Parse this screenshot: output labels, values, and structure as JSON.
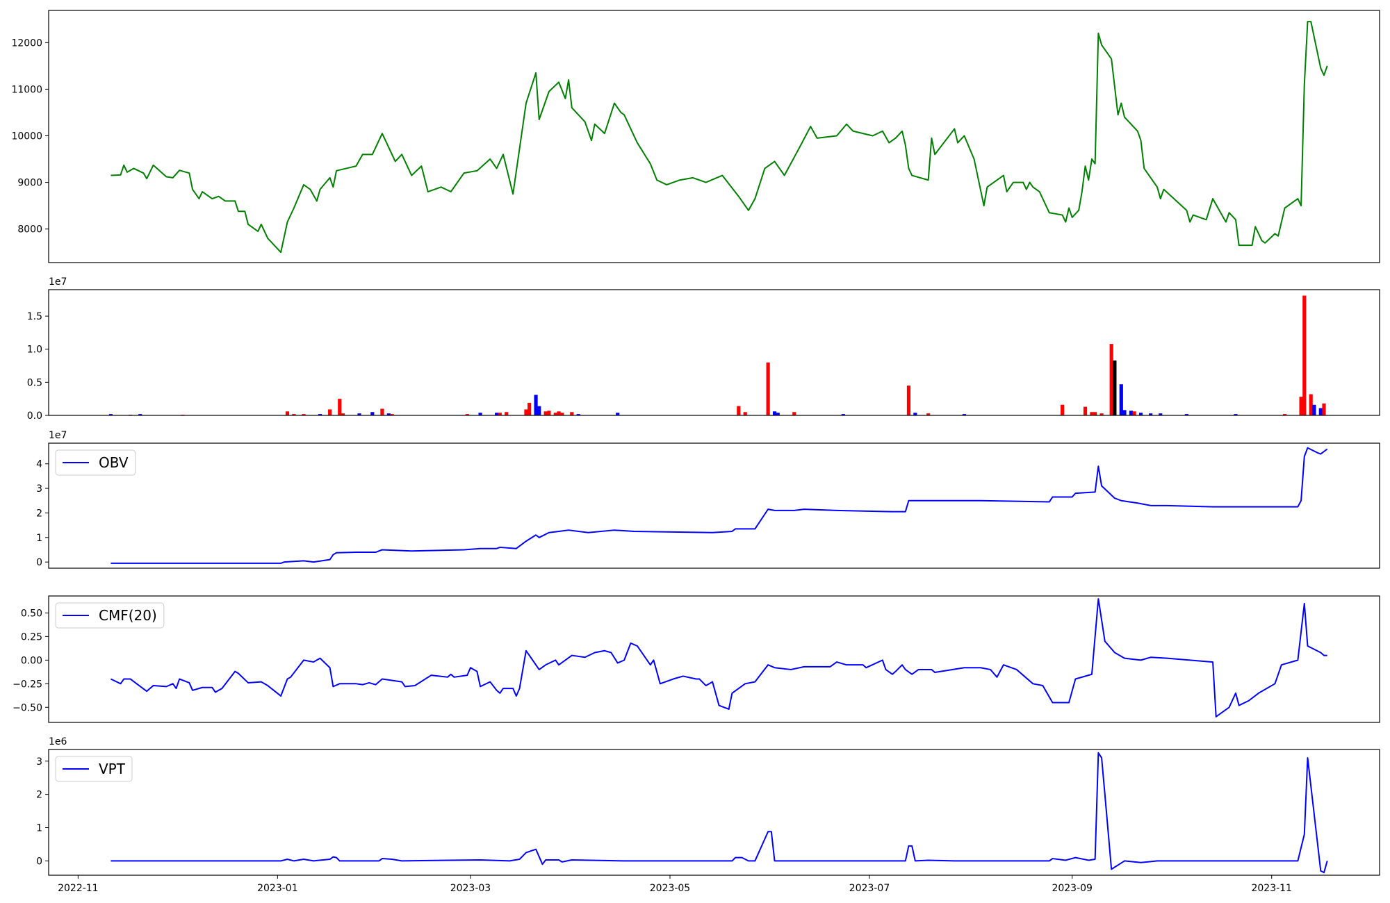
{
  "chart_data": [
    {
      "type": "line",
      "color": "green",
      "xlim": [
        -9,
        398
      ],
      "ylim": [
        7280,
        12690
      ],
      "yticks": [
        8000,
        9000,
        10000,
        11000,
        12000
      ],
      "x": [
        10,
        13,
        14,
        15,
        17,
        20,
        21,
        23,
        27,
        29,
        31,
        34,
        35,
        37,
        38,
        41,
        43,
        45,
        48,
        49,
        51,
        52,
        55,
        56,
        58,
        62,
        64,
        66,
        69,
        71,
        73,
        74,
        77,
        78,
        79,
        85,
        87,
        90,
        93,
        97,
        99,
        102,
        105,
        107,
        111,
        114,
        118,
        122,
        126,
        128,
        130,
        133,
        137,
        140,
        141,
        144,
        147,
        149,
        150,
        151,
        155,
        157,
        158,
        161,
        164,
        166,
        167,
        171,
        175,
        177,
        180,
        184,
        188,
        192,
        197,
        202,
        205,
        207,
        210,
        213,
        216,
        221,
        224,
        226,
        232,
        235,
        237,
        243,
        246,
        248,
        250,
        252,
        253,
        254,
        255,
        260,
        261,
        262,
        268,
        269,
        271,
        274,
        277,
        278,
        283,
        284,
        286,
        289,
        290,
        291,
        292,
        294,
        297,
        301,
        302,
        303,
        304,
        306,
        307,
        308,
        309,
        310,
        311,
        312,
        313,
        316,
        318,
        319,
        320,
        324,
        325,
        326,
        330,
        331,
        332,
        339,
        340,
        341,
        345,
        347,
        351,
        352,
        354,
        355,
        359,
        360,
        362,
        363,
        366,
        367,
        369,
        373,
        374,
        375,
        376,
        377,
        380,
        381,
        382
      ],
      "values": [
        9150,
        9160,
        9370,
        9220,
        9300,
        9200,
        9080,
        9370,
        9120,
        9100,
        9260,
        9200,
        8850,
        8650,
        8800,
        8650,
        8700,
        8600,
        8600,
        8380,
        8380,
        8100,
        7950,
        8100,
        7800,
        7500,
        8150,
        8450,
        8950,
        8850,
        8600,
        8850,
        9100,
        8900,
        9250,
        9350,
        9600,
        9600,
        10050,
        9450,
        9600,
        9150,
        9350,
        8800,
        8900,
        8800,
        9200,
        9250,
        9500,
        9300,
        9600,
        8750,
        10700,
        11350,
        10350,
        10950,
        11150,
        10800,
        11200,
        10600,
        10300,
        9900,
        10250,
        10050,
        10700,
        10500,
        10450,
        9850,
        9400,
        9050,
        8950,
        9050,
        9100,
        9000,
        9150,
        8700,
        8400,
        8650,
        9300,
        9450,
        9150,
        9800,
        10200,
        9950,
        10000,
        10250,
        10100,
        10000,
        10100,
        9850,
        9950,
        10100,
        9800,
        9300,
        9150,
        9050,
        9950,
        9600,
        10150,
        9850,
        10000,
        9500,
        8500,
        8900,
        9150,
        8800,
        9000,
        9000,
        8850,
        9000,
        8900,
        8800,
        8350,
        8300,
        8150,
        8450,
        8250,
        8400,
        8800,
        9350,
        9050,
        9500,
        9400,
        12200,
        11950,
        11650,
        10450,
        10700,
        10400,
        10100,
        9900,
        9300,
        8900,
        8650,
        8850,
        8400,
        8150,
        8300,
        8200,
        8650,
        8150,
        8350,
        8200,
        7650,
        7650,
        8050,
        7750,
        7700,
        7900,
        7850,
        8450,
        8650,
        8500,
        11100,
        12450,
        12450,
        11450,
        11300,
        11500
      ]
    },
    {
      "type": "bar",
      "xlim": [
        -9,
        398
      ],
      "ylim": [
        0,
        1.9
      ],
      "y_offset_label": "1e7",
      "yticks": [
        {
          "value": 0,
          "label": "0.0"
        },
        0.5,
        {
          "value": 1,
          "label": "1.0"
        },
        1.5
      ],
      "x": [
        10,
        16,
        19,
        32,
        64,
        66,
        69,
        74,
        77,
        80,
        81,
        86,
        90,
        93,
        95,
        96,
        119,
        123,
        128,
        129,
        131,
        137,
        138,
        140,
        141,
        143,
        144,
        146,
        147,
        148,
        151,
        153,
        165,
        202,
        204,
        211,
        213,
        214,
        219,
        234,
        254,
        256,
        260,
        271,
        301,
        308,
        310,
        311,
        313,
        316,
        317,
        319,
        320,
        322,
        323,
        325,
        328,
        331,
        339,
        354,
        369,
        374,
        375,
        377,
        378,
        380,
        381
      ],
      "values": [
        0.02,
        0.01,
        0.02,
        0.01,
        0.06,
        0.02,
        0.02,
        0.02,
        0.09,
        0.25,
        0.03,
        0.03,
        0.05,
        0.1,
        0.03,
        0.02,
        0.02,
        0.04,
        0.04,
        0.04,
        0.05,
        0.09,
        0.19,
        0.31,
        0.14,
        0.06,
        0.07,
        0.04,
        0.06,
        0.04,
        0.05,
        0.02,
        0.04,
        0.14,
        0.05,
        0.8,
        0.06,
        0.04,
        0.05,
        0.02,
        0.45,
        0.04,
        0.03,
        0.02,
        0.16,
        0.13,
        0.05,
        0.05,
        0.03,
        1.08,
        0.83,
        0.47,
        0.08,
        0.07,
        0.06,
        0.04,
        0.03,
        0.03,
        0.02,
        0.02,
        0.02,
        0.28,
        1.81,
        0.32,
        0.16,
        0.11,
        0.18
      ],
      "colors": [
        "blue",
        "red",
        "blue",
        "red",
        "red",
        "red",
        "red",
        "blue",
        "red",
        "red",
        "red",
        "blue",
        "blue",
        "red",
        "blue",
        "red",
        "red",
        "blue",
        "blue",
        "red",
        "red",
        "red",
        "red",
        "blue",
        "blue",
        "red",
        "red",
        "red",
        "red",
        "red",
        "red",
        "blue",
        "blue",
        "red",
        "red",
        "red",
        "blue",
        "blue",
        "red",
        "blue",
        "red",
        "blue",
        "red",
        "blue",
        "red",
        "red",
        "red",
        "red",
        "red",
        "red",
        "black",
        "blue",
        "blue",
        "blue",
        "red",
        "blue",
        "blue",
        "blue",
        "blue",
        "blue",
        "red",
        "red",
        "red",
        "red",
        "blue",
        "blue",
        "red"
      ]
    },
    {
      "type": "line",
      "xlim": [
        -9,
        398
      ],
      "ylim": [
        -0.25,
        4.84
      ],
      "y_offset_label": "1e7",
      "yticks": [
        0,
        1,
        2,
        3,
        4
      ],
      "legend": "upper left",
      "x": [
        10,
        58,
        62,
        63,
        69,
        72,
        77,
        78,
        79,
        85,
        91,
        93,
        102,
        118,
        123,
        128,
        129,
        134,
        137,
        140,
        141,
        144,
        147,
        150,
        156,
        164,
        170,
        194,
        200,
        201,
        207,
        211,
        213,
        219,
        222,
        232,
        249,
        253,
        254,
        257,
        265,
        276,
        297,
        298,
        304,
        305,
        311,
        312,
        313,
        317,
        319,
        324,
        328,
        333,
        347,
        358,
        373,
        374,
        375,
        376,
        379,
        380,
        382
      ],
      "series": [
        {
          "name": "OBV",
          "color": "blue",
          "values": [
            -0.05,
            -0.05,
            -0.05,
            0,
            0.05,
            0,
            0.1,
            0.3,
            0.38,
            0.4,
            0.4,
            0.5,
            0.45,
            0.5,
            0.55,
            0.55,
            0.6,
            0.55,
            0.85,
            1.1,
            1.0,
            1.2,
            1.25,
            1.3,
            1.2,
            1.3,
            1.25,
            1.2,
            1.25,
            1.35,
            1.35,
            2.15,
            2.1,
            2.1,
            2.15,
            2.1,
            2.05,
            2.05,
            2.5,
            2.5,
            2.5,
            2.5,
            2.45,
            2.65,
            2.65,
            2.8,
            2.85,
            3.9,
            3.1,
            2.6,
            2.5,
            2.4,
            2.3,
            2.3,
            2.25,
            2.25,
            2.25,
            2.5,
            4.3,
            4.65,
            4.45,
            4.4,
            4.6
          ]
        }
      ]
    },
    {
      "type": "line",
      "xlim": [
        -9,
        398
      ],
      "ylim": [
        -0.66,
        0.68
      ],
      "legend": "upper left",
      "yticks": [
        {
          "value": -0.5,
          "label": "−0.50"
        },
        {
          "value": -0.25,
          "label": "−0.25"
        },
        {
          "value": 0,
          "label": "0.00"
        },
        0.25,
        {
          "value": 0.5,
          "label": "0.50"
        }
      ],
      "x": [
        10,
        13,
        14,
        16,
        21,
        23,
        27,
        29,
        30,
        31,
        34,
        35,
        38,
        41,
        42,
        44,
        48,
        49,
        52,
        56,
        58,
        62,
        64,
        65,
        69,
        72,
        74,
        77,
        78,
        80,
        85,
        87,
        89,
        91,
        93,
        99,
        100,
        103,
        108,
        113,
        114,
        115,
        119,
        120,
        122,
        123,
        126,
        128,
        129,
        130,
        133,
        134,
        135,
        137,
        141,
        143,
        146,
        147,
        151,
        155,
        158,
        161,
        163,
        165,
        167,
        169,
        171,
        175,
        176,
        178,
        182,
        185,
        189,
        190,
        192,
        194,
        196,
        199,
        200,
        204,
        207,
        211,
        213,
        218,
        222,
        230,
        232,
        235,
        240,
        241,
        246,
        247,
        249,
        250,
        252,
        253,
        255,
        257,
        261,
        262,
        271,
        276,
        279,
        281,
        283,
        287,
        292,
        295,
        298,
        303,
        305,
        310,
        312,
        314,
        317,
        320,
        325,
        328,
        333,
        347,
        348,
        352,
        354,
        355,
        358,
        361,
        366,
        368,
        373,
        375,
        376,
        380,
        381,
        382
      ],
      "series": [
        {
          "name": "CMF(20)",
          "color": "blue",
          "values": [
            -0.2,
            -0.25,
            -0.2,
            -0.2,
            -0.33,
            -0.27,
            -0.28,
            -0.25,
            -0.3,
            -0.2,
            -0.24,
            -0.32,
            -0.29,
            -0.29,
            -0.34,
            -0.3,
            -0.12,
            -0.14,
            -0.24,
            -0.23,
            -0.27,
            -0.38,
            -0.2,
            -0.18,
            0.0,
            -0.02,
            0.02,
            -0.08,
            -0.28,
            -0.25,
            -0.25,
            -0.26,
            -0.24,
            -0.26,
            -0.2,
            -0.23,
            -0.28,
            -0.27,
            -0.16,
            -0.18,
            -0.15,
            -0.18,
            -0.16,
            -0.08,
            -0.12,
            -0.28,
            -0.23,
            -0.32,
            -0.35,
            -0.3,
            -0.3,
            -0.38,
            -0.3,
            0.1,
            -0.1,
            -0.05,
            0.0,
            -0.05,
            0.05,
            0.03,
            0.08,
            0.1,
            0.08,
            -0.03,
            0.0,
            0.18,
            0.15,
            -0.05,
            0.0,
            -0.25,
            -0.2,
            -0.17,
            -0.2,
            -0.2,
            -0.27,
            -0.23,
            -0.48,
            -0.52,
            -0.35,
            -0.25,
            -0.23,
            -0.05,
            -0.08,
            -0.1,
            -0.07,
            -0.07,
            -0.02,
            -0.05,
            -0.05,
            -0.08,
            0.0,
            -0.1,
            -0.15,
            -0.12,
            -0.05,
            -0.1,
            -0.15,
            -0.1,
            -0.1,
            -0.13,
            -0.08,
            -0.08,
            -0.1,
            -0.18,
            -0.05,
            -0.1,
            -0.25,
            -0.27,
            -0.45,
            -0.45,
            -0.2,
            -0.15,
            0.65,
            0.2,
            0.08,
            0.02,
            0.0,
            0.03,
            0.02,
            -0.02,
            -0.6,
            -0.5,
            -0.35,
            -0.48,
            -0.43,
            -0.35,
            -0.25,
            -0.05,
            0.0,
            0.6,
            0.15,
            0.08,
            0.05,
            0.05
          ]
        }
      ]
    },
    {
      "type": "line",
      "xlim": [
        -9,
        398
      ],
      "ylim": [
        -0.43,
        3.35
      ],
      "y_offset_label": "1e6",
      "yticks": [
        0,
        1,
        2,
        3
      ],
      "legend": "upper left",
      "xticks": [
        {
          "value": 0,
          "label": "2022-11"
        },
        {
          "value": 61,
          "label": "2023-01"
        },
        {
          "value": 120,
          "label": "2023-03"
        },
        {
          "value": 181,
          "label": "2023-05"
        },
        {
          "value": 242,
          "label": "2023-07"
        },
        {
          "value": 304,
          "label": "2023-09"
        },
        {
          "value": 365,
          "label": "2023-11"
        }
      ],
      "x": [
        10,
        58,
        62,
        64,
        66,
        69,
        72,
        77,
        78,
        79,
        80,
        92,
        93,
        96,
        99,
        123,
        132,
        135,
        137,
        140,
        142,
        143,
        147,
        148,
        151,
        167,
        200,
        201,
        203,
        205,
        207,
        211,
        212,
        213,
        222,
        253,
        254,
        255,
        256,
        260,
        268,
        297,
        298,
        302,
        305,
        309,
        311,
        312,
        313,
        314,
        316,
        320,
        325,
        330,
        358,
        373,
        375,
        376,
        380,
        381,
        382
      ],
      "series": [
        {
          "name": "VPT",
          "color": "blue",
          "values": [
            0,
            0,
            0,
            0.05,
            0,
            0.05,
            0,
            0.05,
            0.12,
            0.1,
            0,
            0,
            0.07,
            0.05,
            0,
            0.03,
            0,
            0.05,
            0.25,
            0.35,
            -0.1,
            0.03,
            0.03,
            -0.03,
            0.03,
            0,
            0,
            0.1,
            0.1,
            0,
            0,
            0.88,
            0.88,
            0,
            0,
            0,
            0.45,
            0.45,
            0,
            0.02,
            0,
            0,
            0.07,
            0.02,
            0.1,
            0.02,
            0.05,
            3.25,
            3.1,
            2.0,
            -0.25,
            0,
            -0.05,
            0,
            0,
            0,
            0.8,
            3.1,
            -0.3,
            -0.35,
            0
          ]
        }
      ]
    }
  ]
}
